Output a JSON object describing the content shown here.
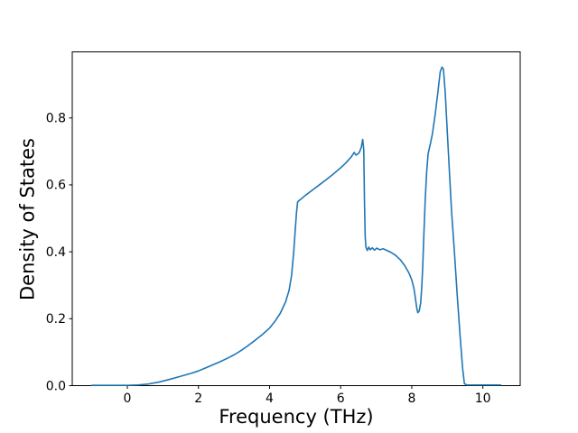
{
  "chart_data": {
    "type": "line",
    "title": "",
    "xlabel": "Frequency (THz)",
    "ylabel": "Density of States",
    "xlim": [
      -1.55,
      11.05
    ],
    "ylim": [
      0,
      0.9975
    ],
    "xticks": [
      0,
      2,
      4,
      6,
      8,
      10
    ],
    "xtick_labels": [
      "0",
      "2",
      "4",
      "6",
      "8",
      "10"
    ],
    "yticks": [
      0.0,
      0.2,
      0.4,
      0.6,
      0.8
    ],
    "ytick_labels": [
      "0.0",
      "0.2",
      "0.4",
      "0.6",
      "0.8"
    ],
    "grid": false,
    "legend": null,
    "line_color": "#1f77b4",
    "spine_color": "#000000",
    "background": "#ffffff",
    "series": [
      {
        "name": "density-of-states",
        "points": [
          [
            -1.0,
            0.001
          ],
          [
            -0.6,
            0.001
          ],
          [
            -0.2,
            0.001
          ],
          [
            0.0,
            0.001
          ],
          [
            0.3,
            0.002
          ],
          [
            0.6,
            0.005
          ],
          [
            0.9,
            0.011
          ],
          [
            1.2,
            0.019
          ],
          [
            1.5,
            0.028
          ],
          [
            1.8,
            0.037
          ],
          [
            2.0,
            0.044
          ],
          [
            2.2,
            0.053
          ],
          [
            2.4,
            0.062
          ],
          [
            2.6,
            0.071
          ],
          [
            2.8,
            0.081
          ],
          [
            3.0,
            0.092
          ],
          [
            3.2,
            0.105
          ],
          [
            3.4,
            0.12
          ],
          [
            3.6,
            0.136
          ],
          [
            3.8,
            0.153
          ],
          [
            4.0,
            0.172
          ],
          [
            4.15,
            0.192
          ],
          [
            4.3,
            0.216
          ],
          [
            4.45,
            0.25
          ],
          [
            4.55,
            0.285
          ],
          [
            4.62,
            0.33
          ],
          [
            4.68,
            0.4
          ],
          [
            4.72,
            0.462
          ],
          [
            4.76,
            0.52
          ],
          [
            4.79,
            0.549
          ],
          [
            4.83,
            0.553
          ],
          [
            4.9,
            0.559
          ],
          [
            5.0,
            0.568
          ],
          [
            5.2,
            0.584
          ],
          [
            5.4,
            0.6
          ],
          [
            5.6,
            0.616
          ],
          [
            5.8,
            0.633
          ],
          [
            6.0,
            0.651
          ],
          [
            6.15,
            0.666
          ],
          [
            6.3,
            0.684
          ],
          [
            6.38,
            0.697
          ],
          [
            6.43,
            0.689
          ],
          [
            6.48,
            0.692
          ],
          [
            6.53,
            0.698
          ],
          [
            6.58,
            0.712
          ],
          [
            6.62,
            0.736
          ],
          [
            6.65,
            0.705
          ],
          [
            6.67,
            0.55
          ],
          [
            6.69,
            0.445
          ],
          [
            6.71,
            0.414
          ],
          [
            6.75,
            0.404
          ],
          [
            6.79,
            0.414
          ],
          [
            6.83,
            0.406
          ],
          [
            6.89,
            0.412
          ],
          [
            6.95,
            0.405
          ],
          [
            7.02,
            0.411
          ],
          [
            7.1,
            0.406
          ],
          [
            7.2,
            0.409
          ],
          [
            7.3,
            0.404
          ],
          [
            7.42,
            0.398
          ],
          [
            7.55,
            0.389
          ],
          [
            7.68,
            0.376
          ],
          [
            7.8,
            0.359
          ],
          [
            7.92,
            0.337
          ],
          [
            8.0,
            0.316
          ],
          [
            8.06,
            0.291
          ],
          [
            8.1,
            0.263
          ],
          [
            8.14,
            0.232
          ],
          [
            8.17,
            0.218
          ],
          [
            8.21,
            0.223
          ],
          [
            8.25,
            0.247
          ],
          [
            8.28,
            0.292
          ],
          [
            8.31,
            0.36
          ],
          [
            8.34,
            0.45
          ],
          [
            8.38,
            0.56
          ],
          [
            8.42,
            0.64
          ],
          [
            8.46,
            0.693
          ],
          [
            8.52,
            0.721
          ],
          [
            8.58,
            0.752
          ],
          [
            8.66,
            0.812
          ],
          [
            8.74,
            0.882
          ],
          [
            8.8,
            0.938
          ],
          [
            8.85,
            0.952
          ],
          [
            8.89,
            0.946
          ],
          [
            8.94,
            0.878
          ],
          [
            9.0,
            0.757
          ],
          [
            9.06,
            0.638
          ],
          [
            9.12,
            0.52
          ],
          [
            9.2,
            0.399
          ],
          [
            9.28,
            0.268
          ],
          [
            9.36,
            0.148
          ],
          [
            9.43,
            0.052
          ],
          [
            9.48,
            0.006
          ],
          [
            9.55,
            0.002
          ],
          [
            9.8,
            0.002
          ],
          [
            10.1,
            0.002
          ],
          [
            10.5,
            0.002
          ]
        ]
      }
    ]
  }
}
